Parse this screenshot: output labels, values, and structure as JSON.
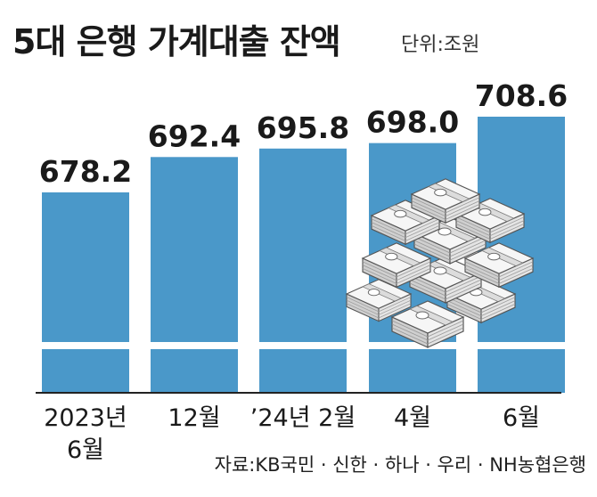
{
  "header": {
    "title": "5대 은행 가계대출 잔액",
    "unit": "단위:조원"
  },
  "footer": {
    "source": "자료:KB국민 · 신한 · 하나 · 우리 · NH농협은행"
  },
  "colors": {
    "bar": "#4a98c9",
    "text": "#1a1a1a",
    "axis": "#222222"
  },
  "icons": [
    "money-stack-icon"
  ],
  "chart_data": {
    "type": "bar",
    "categories": [
      "2023년 6월",
      "12월",
      "'24년 2월",
      "4월",
      "6월"
    ],
    "category_lines": [
      [
        "2023년",
        "6월"
      ],
      [
        "12월"
      ],
      [
        "’24년 2월"
      ],
      [
        "4월"
      ],
      [
        "6월"
      ]
    ],
    "values": [
      678.2,
      692.4,
      695.8,
      698.0,
      708.6
    ],
    "value_labels": [
      "678.2",
      "692.4",
      "695.8",
      "698.0",
      "708.6"
    ],
    "title": "5대 은행 가계대출 잔액",
    "ylabel": "",
    "axis_break": true,
    "ylim": [
      660,
      712
    ],
    "grid": false,
    "legend": "none"
  }
}
